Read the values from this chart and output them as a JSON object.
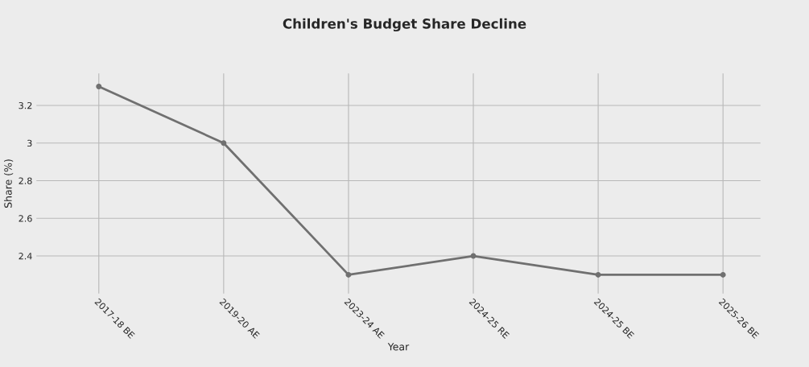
{
  "chart_data": {
    "type": "line",
    "title": "Children's Budget Share Decline",
    "xlabel": "Year",
    "ylabel": "Share (%)",
    "categories": [
      "2017-18 BE",
      "2019-20 AE",
      "2023-24 AE",
      "2024-25 RE",
      "2024-25 BE",
      "2025-26 BE"
    ],
    "series": [
      {
        "color": "#707070",
        "values": [
          3.3,
          3.0,
          2.3,
          2.4,
          2.3,
          2.3
        ]
      }
    ],
    "ylim": [
      2.2,
      3.37
    ],
    "yticks": [
      2.4,
      2.6,
      2.8,
      {
        "value": 3.0,
        "label": "3"
      },
      3.2
    ],
    "grid": true,
    "marker": "circle",
    "line_style": "solid"
  }
}
